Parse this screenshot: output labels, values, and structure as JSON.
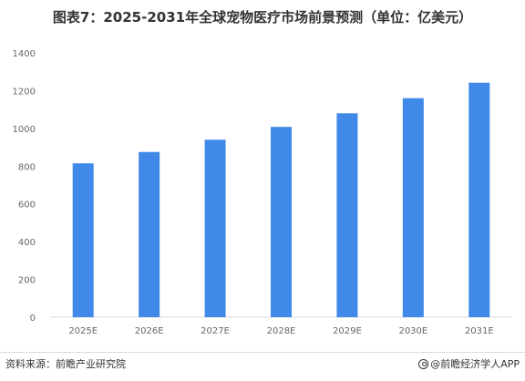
{
  "title": "图表7：2025-2031年全球宠物医疗市场前景预测（单位：亿美元）",
  "source": "资料来源：前瞻产业研究院",
  "brand": "@前瞻经济学人APP",
  "brand_icon": "logo-icon",
  "colors": {
    "bar": "#4189E8",
    "axis": "#d9d9d9"
  },
  "chart_data": {
    "type": "bar",
    "title": "图表7：2025-2031年全球宠物医疗市场前景预测（单位：亿美元）",
    "xlabel": "",
    "ylabel": "",
    "categories": [
      "2025E",
      "2026E",
      "2027E",
      "2028E",
      "2029E",
      "2030E",
      "2031E"
    ],
    "values": [
      815,
      875,
      940,
      1008,
      1080,
      1160,
      1242
    ],
    "ylim": [
      0,
      1400
    ],
    "yticks": [
      0,
      200,
      400,
      600,
      800,
      1000,
      1200,
      1400
    ],
    "grid": false,
    "legend": "none"
  }
}
